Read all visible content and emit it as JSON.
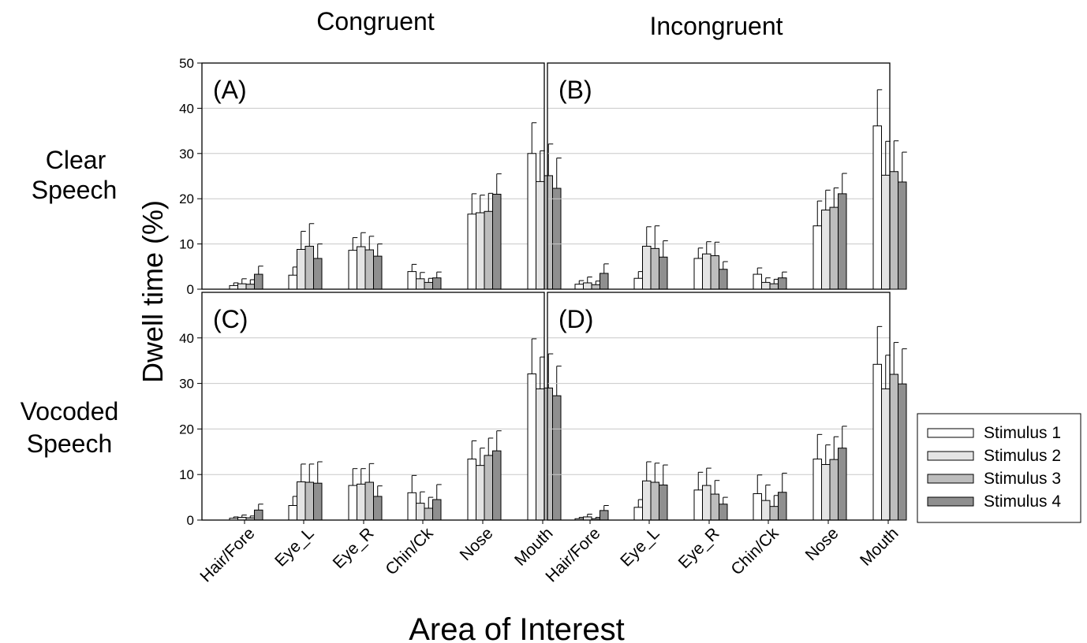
{
  "figure": {
    "col_titles": [
      "Congruent",
      "Incongruent"
    ],
    "row_titles": [
      [
        "Clear",
        "Speech"
      ],
      [
        "Vocoded",
        "Speech"
      ]
    ],
    "ylabel": "Dwell time (%)",
    "xlabel": "Area of Interest"
  },
  "legend": {
    "items": [
      "Stimulus 1",
      "Stimulus 2",
      "Stimulus 3",
      "Stimulus 4"
    ],
    "colors": [
      "#ffffff",
      "#e4e4e4",
      "#bdbdbd",
      "#8f8f8f"
    ]
  },
  "chart_data": [
    {
      "type": "bar",
      "panel": "(A)",
      "categories": [
        "Hair/Fore",
        "Eye_L",
        "Eye_R",
        "Chin/Ck",
        "Nose",
        "Mouth"
      ],
      "ylim": [
        0,
        50
      ],
      "yticks": [
        0,
        10,
        20,
        30,
        40,
        50
      ],
      "grid": true,
      "series": [
        {
          "name": "Stimulus 1",
          "values": [
            0.8,
            3.1,
            8.6,
            3.9,
            16.6,
            30.0
          ],
          "errors": [
            0.6,
            1.8,
            2.8,
            1.6,
            4.5,
            6.8
          ]
        },
        {
          "name": "Stimulus 2",
          "values": [
            1.2,
            8.8,
            9.4,
            2.3,
            16.9,
            23.8
          ],
          "errors": [
            1.1,
            4.0,
            3.1,
            1.4,
            3.9,
            6.8
          ]
        },
        {
          "name": "Stimulus 3",
          "values": [
            1.1,
            9.5,
            8.7,
            1.5,
            17.2,
            25.1
          ],
          "errors": [
            1.0,
            5.0,
            3.0,
            0.9,
            4.0,
            7.0
          ]
        },
        {
          "name": "Stimulus 4",
          "values": [
            3.3,
            6.8,
            7.3,
            2.5,
            21.0,
            22.3
          ],
          "errors": [
            1.8,
            3.2,
            2.7,
            1.3,
            4.5,
            6.7
          ]
        }
      ]
    },
    {
      "type": "bar",
      "panel": "(B)",
      "categories": [
        "Hair/Fore",
        "Eye_L",
        "Eye_R",
        "Chin/Ck",
        "Nose",
        "Mouth"
      ],
      "ylim": [
        0,
        50
      ],
      "yticks": [
        0,
        10,
        20,
        30,
        40,
        50
      ],
      "grid": true,
      "series": [
        {
          "name": "Stimulus 1",
          "values": [
            1.1,
            2.4,
            6.8,
            3.3,
            14.0,
            36.1
          ],
          "errors": [
            0.8,
            1.5,
            2.3,
            1.4,
            5.5,
            8.0
          ]
        },
        {
          "name": "Stimulus 2",
          "values": [
            1.4,
            9.5,
            7.8,
            1.5,
            17.5,
            25.2
          ],
          "errors": [
            1.3,
            4.3,
            2.7,
            1.0,
            4.4,
            7.5
          ]
        },
        {
          "name": "Stimulus 3",
          "values": [
            1.0,
            9.0,
            7.4,
            1.2,
            18.1,
            26.0
          ],
          "errors": [
            0.8,
            5.0,
            3.0,
            1.0,
            4.3,
            6.8
          ]
        },
        {
          "name": "Stimulus 4",
          "values": [
            3.5,
            7.1,
            4.4,
            2.5,
            21.1,
            23.7
          ],
          "errors": [
            2.1,
            3.6,
            1.7,
            1.3,
            4.5,
            6.6
          ]
        }
      ]
    },
    {
      "type": "bar",
      "panel": "(C)",
      "categories": [
        "Hair/Fore",
        "Eye_L",
        "Eye_R",
        "Chin/Ck",
        "Nose",
        "Mouth"
      ],
      "ylim": [
        0,
        50
      ],
      "yticks": [
        0,
        10,
        20,
        30,
        40
      ],
      "grid": true,
      "series": [
        {
          "name": "Stimulus 1",
          "values": [
            0.4,
            3.2,
            7.6,
            6.0,
            13.4,
            32.1
          ],
          "errors": [
            0.3,
            2.0,
            3.7,
            3.8,
            4.0,
            7.7
          ]
        },
        {
          "name": "Stimulus 2",
          "values": [
            0.6,
            8.4,
            7.9,
            3.7,
            12.0,
            28.8
          ],
          "errors": [
            0.5,
            3.9,
            3.4,
            2.5,
            3.8,
            7.0
          ]
        },
        {
          "name": "Stimulus 3",
          "values": [
            0.5,
            8.3,
            8.3,
            2.6,
            14.2,
            29.0
          ],
          "errors": [
            0.4,
            4.0,
            4.1,
            2.4,
            3.8,
            7.5
          ]
        },
        {
          "name": "Stimulus 4",
          "values": [
            2.2,
            8.1,
            5.2,
            4.5,
            15.2,
            27.3
          ],
          "errors": [
            1.3,
            4.7,
            2.3,
            3.3,
            4.4,
            6.5
          ]
        }
      ]
    },
    {
      "type": "bar",
      "panel": "(D)",
      "categories": [
        "Hair/Fore",
        "Eye_L",
        "Eye_R",
        "Chin/Ck",
        "Nose",
        "Mouth"
      ],
      "ylim": [
        0,
        50
      ],
      "yticks": [
        0,
        10,
        20,
        30,
        40
      ],
      "grid": true,
      "series": [
        {
          "name": "Stimulus 1",
          "values": [
            0.3,
            2.8,
            6.6,
            5.8,
            13.4,
            34.2
          ],
          "errors": [
            0.3,
            1.7,
            3.9,
            4.1,
            5.4,
            8.3
          ]
        },
        {
          "name": "Stimulus 2",
          "values": [
            0.7,
            8.6,
            7.6,
            4.3,
            12.2,
            28.8
          ],
          "errors": [
            0.6,
            4.2,
            3.8,
            3.4,
            4.3,
            7.4
          ]
        },
        {
          "name": "Stimulus 3",
          "values": [
            0.3,
            8.3,
            5.7,
            3.0,
            13.3,
            32.0
          ],
          "errors": [
            0.3,
            4.2,
            3.0,
            2.4,
            5.0,
            7.0
          ]
        },
        {
          "name": "Stimulus 4",
          "values": [
            2.1,
            7.7,
            3.5,
            6.1,
            15.8,
            29.9
          ],
          "errors": [
            1.1,
            4.4,
            1.5,
            4.2,
            4.8,
            7.7
          ]
        }
      ]
    }
  ]
}
